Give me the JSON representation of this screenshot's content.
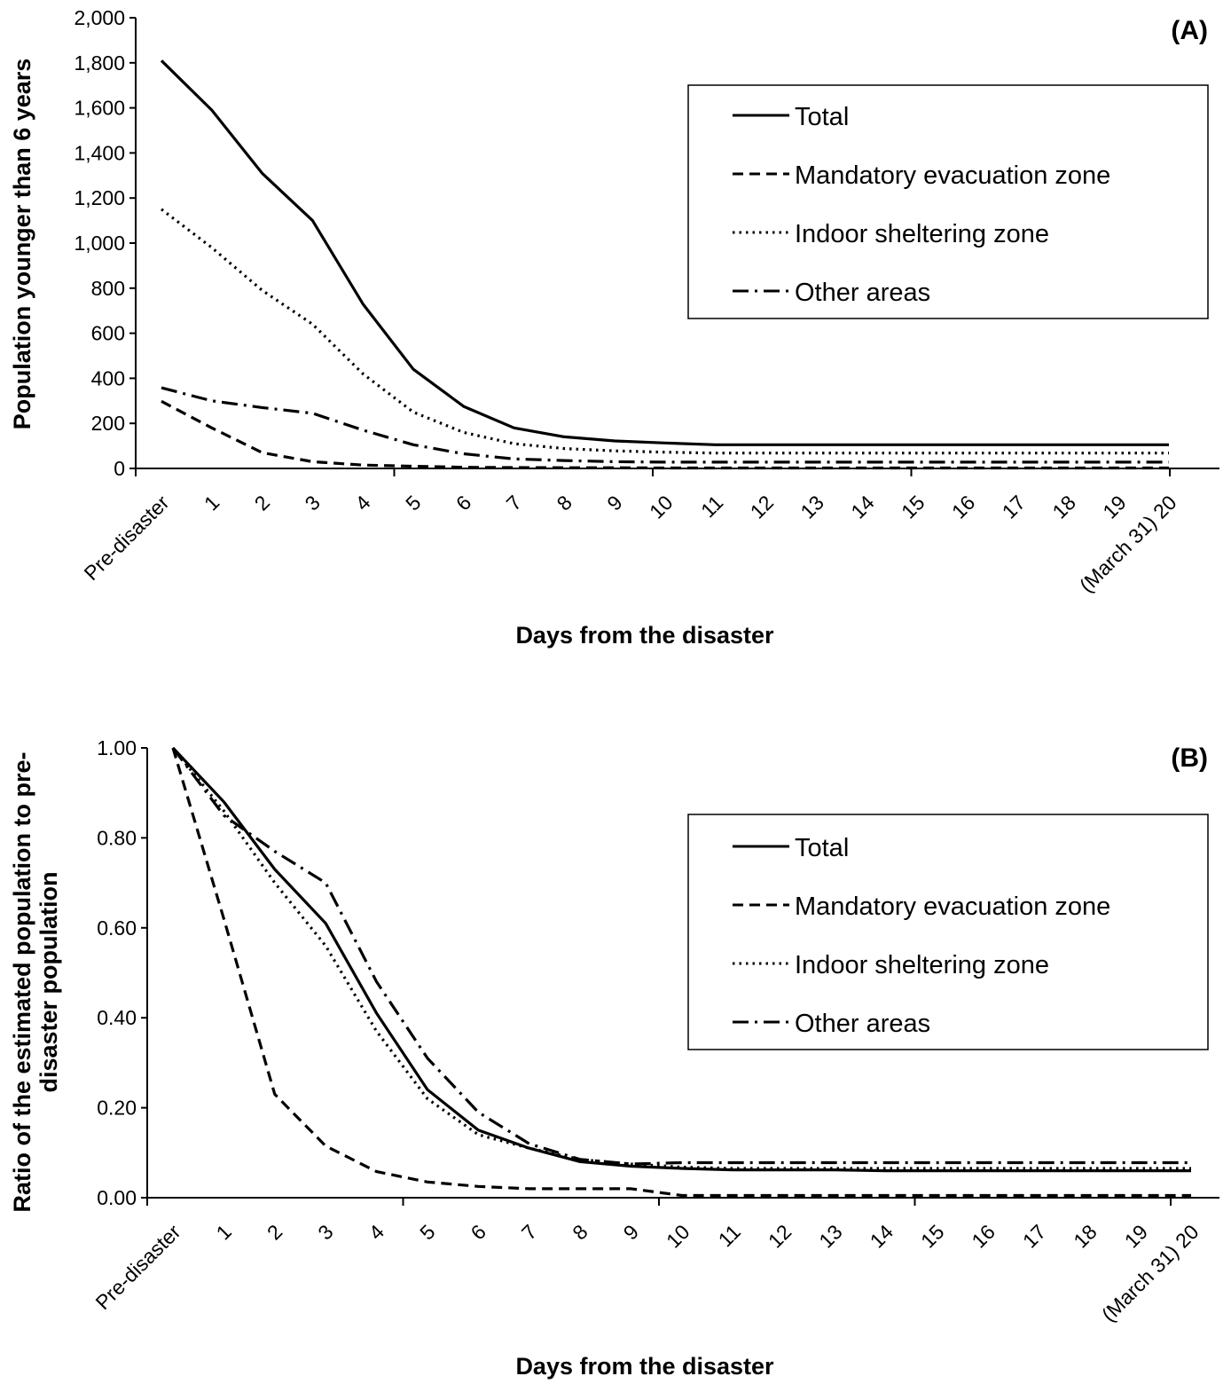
{
  "chart_data": [
    {
      "type": "line",
      "panel_label": "(A)",
      "xlabel": "Days from the disaster",
      "ylabel": "Population younger than 6 years",
      "categories": [
        "Pre-disaster",
        "1",
        "2",
        "3",
        "4",
        "5",
        "6",
        "7",
        "8",
        "9",
        "10",
        "11",
        "12",
        "13",
        "14",
        "15",
        "16",
        "17",
        "18",
        "19",
        "(March 31) 20"
      ],
      "ylim": [
        0,
        2000
      ],
      "yticks": [
        "0",
        "200",
        "400",
        "600",
        "800",
        "1,000",
        "1,200",
        "1,400",
        "1,600",
        "1,800",
        "2,000"
      ],
      "grid": false,
      "legend_position": "top-right",
      "series": [
        {
          "name": "Total",
          "style": "solid",
          "values": [
            1810,
            1590,
            1310,
            1100,
            730,
            440,
            275,
            180,
            140,
            122,
            113,
            105,
            105,
            105,
            105,
            105,
            105,
            105,
            105,
            105,
            105
          ]
        },
        {
          "name": "Mandatory evacuation zone",
          "style": "dashed",
          "values": [
            298,
            180,
            70,
            30,
            15,
            10,
            5,
            4,
            3,
            3,
            2,
            2,
            2,
            2,
            2,
            2,
            2,
            2,
            2,
            2,
            2
          ]
        },
        {
          "name": "Indoor sheltering zone",
          "style": "dotted",
          "values": [
            1150,
            980,
            790,
            640,
            420,
            250,
            160,
            110,
            88,
            78,
            72,
            68,
            68,
            68,
            68,
            68,
            68,
            68,
            68,
            68,
            68
          ]
        },
        {
          "name": "Other areas",
          "style": "dashdot",
          "values": [
            358,
            300,
            270,
            245,
            170,
            105,
            65,
            42,
            35,
            30,
            28,
            28,
            28,
            28,
            28,
            28,
            28,
            28,
            28,
            28,
            28
          ]
        }
      ]
    },
    {
      "type": "line",
      "panel_label": "(B)",
      "xlabel": "Days from the disaster",
      "ylabel_lines": [
        "Ratio of the estimated population to pre-",
        "disaster population"
      ],
      "categories": [
        "Pre-disaster",
        "1",
        "2",
        "3",
        "4",
        "5",
        "6",
        "7",
        "8",
        "9",
        "10",
        "11",
        "12",
        "13",
        "14",
        "15",
        "16",
        "17",
        "18",
        "19",
        "(March 31) 20"
      ],
      "ylim": [
        0,
        1
      ],
      "yticks": [
        "0.00",
        "0.20",
        "0.40",
        "0.60",
        "0.80",
        "1.00"
      ],
      "grid": false,
      "legend_position": "top-right",
      "series": [
        {
          "name": "Total",
          "style": "solid",
          "values": [
            1.0,
            0.88,
            0.73,
            0.61,
            0.41,
            0.24,
            0.15,
            0.11,
            0.08,
            0.07,
            0.065,
            0.062,
            0.062,
            0.062,
            0.06,
            0.06,
            0.06,
            0.06,
            0.06,
            0.06,
            0.06
          ]
        },
        {
          "name": "Mandatory evacuation zone",
          "style": "dashed",
          "values": [
            1.0,
            0.62,
            0.23,
            0.115,
            0.058,
            0.035,
            0.025,
            0.02,
            0.02,
            0.02,
            0.005,
            0.005,
            0.005,
            0.005,
            0.005,
            0.005,
            0.005,
            0.005,
            0.005,
            0.005,
            0.005
          ]
        },
        {
          "name": "Indoor sheltering zone",
          "style": "dotted",
          "values": [
            1.0,
            0.86,
            0.7,
            0.56,
            0.37,
            0.22,
            0.14,
            0.11,
            0.085,
            0.075,
            0.068,
            0.065,
            0.065,
            0.065,
            0.065,
            0.065,
            0.065,
            0.065,
            0.065,
            0.065,
            0.065
          ]
        },
        {
          "name": "Other areas",
          "style": "dashdot",
          "values": [
            1.0,
            0.85,
            0.77,
            0.7,
            0.48,
            0.31,
            0.19,
            0.12,
            0.085,
            0.075,
            0.078,
            0.078,
            0.078,
            0.078,
            0.078,
            0.078,
            0.078,
            0.078,
            0.078,
            0.078,
            0.078
          ]
        }
      ]
    }
  ]
}
